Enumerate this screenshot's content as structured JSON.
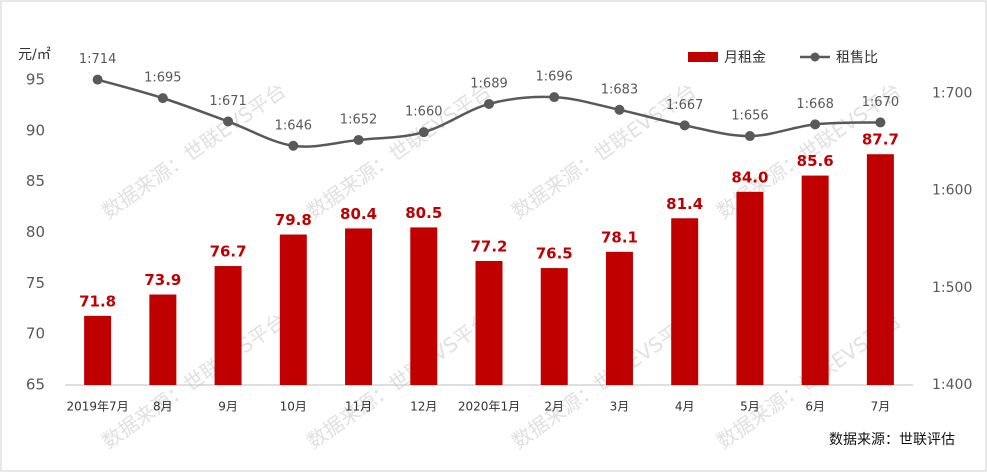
{
  "chart_data": {
    "type": "bar-line",
    "y_axis_label": "元/㎡",
    "source": "数据来源：世联评估",
    "watermark": "数据来源：世联EVS平台",
    "categories": [
      "2019年7月",
      "8月",
      "9月",
      "10月",
      "11月",
      "12月",
      "2020年1月",
      "2月",
      "3月",
      "4月",
      "5月",
      "6月",
      "7月"
    ],
    "series": [
      {
        "name": "月租金",
        "type": "bar",
        "color": "#c00000",
        "values": [
          71.8,
          73.9,
          76.7,
          79.8,
          80.4,
          80.5,
          77.2,
          76.5,
          78.1,
          81.4,
          84.0,
          85.6,
          87.7
        ],
        "value_labels": [
          "71.8",
          "73.9",
          "76.7",
          "79.8",
          "80.4",
          "80.5",
          "77.2",
          "76.5",
          "78.1",
          "81.4",
          "84.0",
          "85.6",
          "87.7"
        ]
      },
      {
        "name": "租售比",
        "type": "line",
        "axis": "y2",
        "color": "#595959",
        "values": [
          714,
          695,
          671,
          646,
          652,
          660,
          689,
          696,
          683,
          667,
          656,
          668,
          670
        ],
        "value_labels": [
          "1:714",
          "1:695",
          "1:671",
          "1:646",
          "1:652",
          "1:660",
          "1:689",
          "1:696",
          "1:683",
          "1:667",
          "1:656",
          "1:668",
          "1:670"
        ]
      }
    ],
    "ylim": [
      65,
      98
    ],
    "yticks": [
      65,
      70,
      75,
      80,
      85,
      90,
      95
    ],
    "y2lim": [
      400,
      745
    ],
    "y2ticks": [
      {
        "value": 400,
        "label": "1:400"
      },
      {
        "value": 500,
        "label": "1:500"
      },
      {
        "value": 600,
        "label": "1:600"
      },
      {
        "value": 700,
        "label": "1:700"
      }
    ]
  }
}
